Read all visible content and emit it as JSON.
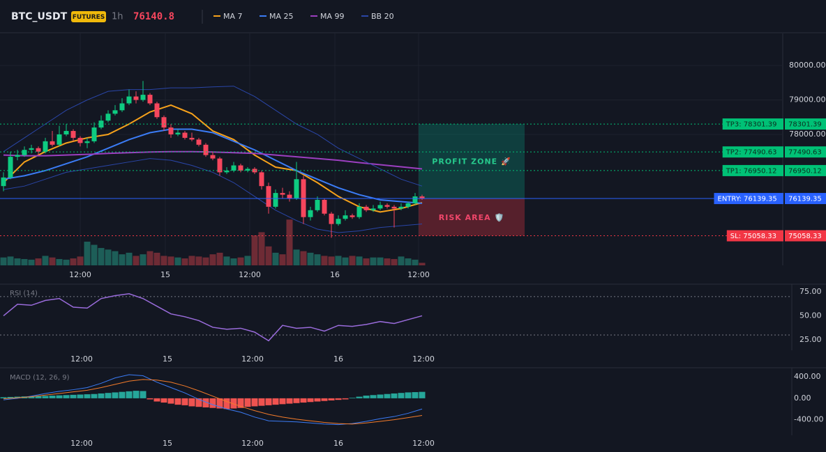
{
  "header": {
    "symbol": "BTC_USDT",
    "badge": "FUTURES",
    "interval": "1h",
    "last_price": 76140.8
  },
  "price_chart": {
    "ylim": [
      74200,
      80930
    ],
    "price_ticks": [
      {
        "value": 80000,
        "label": "80000.00"
      },
      {
        "value": 79000,
        "label": "79000.00"
      },
      {
        "value": 78000,
        "label": "78000.00"
      }
    ],
    "vlim": [
      0,
      150
    ],
    "time_labels": [
      "12:00",
      "15",
      "12:00",
      "16",
      "12:00"
    ],
    "candles": [
      [
        76500,
        76900,
        76350,
        76750
      ],
      [
        76750,
        77500,
        76700,
        77350
      ],
      [
        77350,
        77550,
        77250,
        77400
      ],
      [
        77400,
        77650,
        77350,
        77550
      ],
      [
        77550,
        77700,
        77450,
        77600
      ],
      [
        77600,
        77650,
        77400,
        77500
      ],
      [
        77500,
        77900,
        77450,
        77800
      ],
      [
        77800,
        78100,
        77650,
        77700
      ],
      [
        77700,
        78250,
        77650,
        78000
      ],
      [
        78000,
        78300,
        77950,
        78100
      ],
      [
        78100,
        78150,
        77800,
        77900
      ],
      [
        77900,
        77950,
        77650,
        77750
      ],
      [
        77750,
        77900,
        77600,
        77800
      ],
      [
        77800,
        78350,
        77750,
        78200
      ],
      [
        78200,
        78550,
        78150,
        78400
      ],
      [
        78400,
        78700,
        78350,
        78600
      ],
      [
        78600,
        78850,
        78550,
        78700
      ],
      [
        78700,
        79050,
        78650,
        78900
      ],
      [
        78900,
        79300,
        78850,
        79100
      ],
      [
        79100,
        79250,
        78900,
        79000
      ],
      [
        79000,
        79550,
        78950,
        79150
      ],
      [
        79150,
        79200,
        78850,
        78900
      ],
      [
        78900,
        78950,
        78450,
        78500
      ],
      [
        78500,
        78550,
        78100,
        78200
      ],
      [
        78200,
        78300,
        77900,
        78000
      ],
      [
        78000,
        78150,
        77950,
        78050
      ],
      [
        78050,
        78100,
        77850,
        77900
      ],
      [
        77900,
        78050,
        77800,
        77850
      ],
      [
        77850,
        77900,
        77650,
        77700
      ],
      [
        77700,
        77750,
        77350,
        77400
      ],
      [
        77400,
        77500,
        77250,
        77300
      ],
      [
        77300,
        77350,
        76800,
        76900
      ],
      [
        76900,
        77050,
        76850,
        76950
      ],
      [
        76950,
        77200,
        76900,
        77100
      ],
      [
        77100,
        77150,
        76900,
        76950
      ],
      [
        76950,
        77050,
        76900,
        77000
      ],
      [
        77000,
        77050,
        76850,
        76900
      ],
      [
        76900,
        76950,
        76400,
        76500
      ],
      [
        76500,
        76600,
        75700,
        75900
      ],
      [
        75900,
        76400,
        75850,
        76300
      ],
      [
        76300,
        76450,
        76150,
        76250
      ],
      [
        76250,
        76350,
        76050,
        76150
      ],
      [
        76150,
        77200,
        76100,
        76700
      ],
      [
        76700,
        76800,
        75400,
        75600
      ],
      [
        75600,
        75900,
        75500,
        75800
      ],
      [
        75800,
        76200,
        75750,
        76100
      ],
      [
        76100,
        76150,
        75650,
        75700
      ],
      [
        75700,
        75750,
        75000,
        75400
      ],
      [
        75400,
        75650,
        75350,
        75550
      ],
      [
        75550,
        75800,
        75500,
        75650
      ],
      [
        75650,
        75700,
        75550,
        75600
      ],
      [
        75600,
        76000,
        75550,
        75900
      ],
      [
        75900,
        75950,
        75750,
        75800
      ],
      [
        75800,
        75950,
        75750,
        75850
      ],
      [
        75850,
        76050,
        75800,
        75950
      ],
      [
        75950,
        76000,
        75850,
        75900
      ],
      [
        75900,
        75950,
        75300,
        75850
      ],
      [
        75850,
        76000,
        75800,
        75900
      ],
      [
        75900,
        76050,
        75850,
        76000
      ],
      [
        76000,
        76300,
        75950,
        76200
      ],
      [
        76200,
        76250,
        76100,
        76140
      ]
    ],
    "volumes": [
      25,
      28,
      22,
      20,
      18,
      22,
      30,
      25,
      20,
      18,
      22,
      28,
      75,
      65,
      55,
      50,
      45,
      35,
      40,
      30,
      35,
      45,
      40,
      30,
      28,
      25,
      22,
      30,
      28,
      25,
      35,
      40,
      28,
      22,
      25,
      30,
      95,
      105,
      60,
      40,
      35,
      145,
      50,
      45,
      40,
      35,
      30,
      28,
      30,
      25,
      30,
      28,
      22,
      25,
      25,
      22,
      20,
      28,
      22,
      18,
      8
    ],
    "indicators": [
      {
        "name": "MA 7",
        "color": "#f7a21b",
        "values": [
          76600,
          77200,
          77500,
          77750,
          77900,
          78000,
          78300,
          78650,
          78850,
          78600,
          78100,
          77850,
          77400,
          77050,
          76950,
          76600,
          76200,
          75900,
          75750,
          75850,
          76020
        ]
      },
      {
        "name": "MA 25",
        "color": "#3b7cf6",
        "values": [
          76700,
          76800,
          76950,
          77150,
          77350,
          77600,
          77850,
          78050,
          78150,
          78150,
          78050,
          77800,
          77550,
          77250,
          76950,
          76700,
          76450,
          76250,
          76100,
          76050,
          76000
        ]
      },
      {
        "name": "MA 99",
        "color": "#9c3fc0",
        "values": [
          77400,
          77380,
          77380,
          77400,
          77420,
          77450,
          77470,
          77490,
          77500,
          77500,
          77490,
          77470,
          77450,
          77400,
          77350,
          77300,
          77250,
          77180,
          77120,
          77060,
          77000
        ]
      },
      {
        "name": "BB 20",
        "color": "#2a46a8",
        "upper": [
          77500,
          77900,
          78300,
          78700,
          79000,
          79250,
          79300,
          79300,
          79350,
          79350,
          79380,
          79400,
          79100,
          78700,
          78300,
          78000,
          77600,
          77300,
          77000,
          76700,
          76500
        ],
        "lower": [
          76400,
          76500,
          76700,
          76900,
          77000,
          77100,
          77200,
          77300,
          77250,
          77100,
          76900,
          76600,
          76200,
          75800,
          75500,
          75250,
          75150,
          75200,
          75300,
          75350,
          75400
        ]
      }
    ],
    "levels": [
      {
        "tag": "TP3: 78301.39",
        "value": 78301.39,
        "color": "#00c176"
      },
      {
        "tag": "TP2: 77490.63",
        "value": 77490.63,
        "color": "#00c176"
      },
      {
        "tag": "TP1: 76950.12",
        "value": 76950.12,
        "color": "#00c176"
      },
      {
        "tag": "ENTRY: 76139.35",
        "value": 76139.35,
        "color": "#2962ff"
      },
      {
        "tag": "SL: 75058.33",
        "value": 75058.33,
        "color": "#f23645"
      }
    ],
    "zones": [
      {
        "label": "PROFIT ZONE 🚀",
        "color": "#089981"
      },
      {
        "label": "RISK AREA 🛡️",
        "color": "#f23645"
      }
    ]
  },
  "rsi": {
    "title": "RSI (14)",
    "ylim": [
      14,
      83
    ],
    "yticks": [
      {
        "value": 75,
        "label": "75.00"
      },
      {
        "value": 50,
        "label": "50.00"
      },
      {
        "value": 25,
        "label": "25.00"
      }
    ],
    "bands": [
      70,
      30
    ],
    "color": "#9a6cdc",
    "values": [
      50,
      62,
      61,
      66,
      68,
      59,
      58,
      68,
      71,
      73,
      68,
      60,
      52,
      49,
      45,
      38,
      36,
      37,
      33,
      24,
      40,
      37,
      38,
      34,
      40,
      39,
      41,
      44,
      42,
      46,
      50
    ]
  },
  "macd": {
    "title": "MACD (12, 26, 9)",
    "ylim": [
      -690,
      570
    ],
    "yticks": [
      {
        "value": 400,
        "label": "400.00"
      },
      {
        "value": 0,
        "label": "0.00"
      },
      {
        "value": -400,
        "label": "-400.00"
      }
    ],
    "macd_color": "#3b7cf6",
    "signal_color": "#f57c2a",
    "up_color": "#26a69a",
    "down_color": "#ef5350",
    "histogram": [
      20,
      25,
      30,
      35,
      35,
      40,
      45,
      50,
      55,
      60,
      65,
      70,
      75,
      80,
      90,
      100,
      110,
      120,
      130,
      140,
      135,
      -20,
      -60,
      -80,
      -100,
      -120,
      -130,
      -150,
      -160,
      -170,
      -180,
      -190,
      -200,
      -190,
      -180,
      -160,
      -150,
      -140,
      -130,
      -120,
      -110,
      -100,
      -90,
      -80,
      -70,
      -60,
      -50,
      -40,
      -30,
      -20,
      10,
      30,
      50,
      60,
      70,
      80,
      90,
      100,
      110,
      115,
      120
    ],
    "macd": [
      -30,
      0,
      40,
      90,
      130,
      160,
      200,
      280,
      380,
      440,
      420,
      300,
      200,
      100,
      -20,
      -120,
      -200,
      -260,
      -350,
      -420,
      -430,
      -440,
      -460,
      -480,
      -490,
      -470,
      -430,
      -380,
      -340,
      -280,
      -200
    ],
    "signal": [
      -10,
      10,
      30,
      60,
      90,
      120,
      150,
      200,
      260,
      320,
      350,
      340,
      300,
      230,
      140,
      40,
      -60,
      -150,
      -230,
      -300,
      -350,
      -390,
      -420,
      -450,
      -470,
      -480,
      -460,
      -430,
      -400,
      -360,
      -320
    ]
  }
}
